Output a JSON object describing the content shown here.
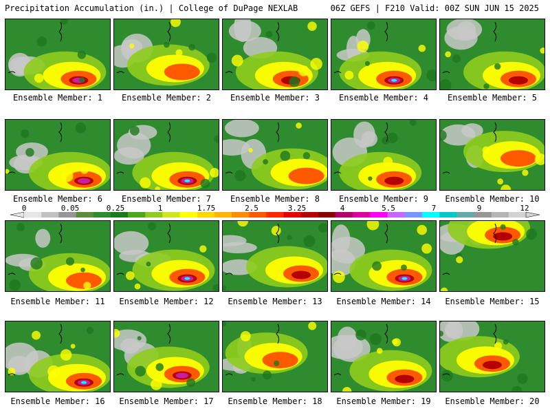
{
  "header": {
    "title_left": "Precipitation Accumulation (in.) | College of DuPage NEXLAB",
    "title_right": "06Z GEFS | F210 Valid: 00Z SUN JUN 15 2025"
  },
  "members": [
    {
      "label": "Ensemble Member: 1",
      "wet_center": [
        0.7,
        0.85
      ],
      "heavy_peak": 5.5
    },
    {
      "label": "Ensemble Member: 2",
      "wet_center": [
        0.65,
        0.75
      ],
      "heavy_peak": 3.25
    },
    {
      "label": "Ensemble Member: 3",
      "wet_center": [
        0.65,
        0.85
      ],
      "heavy_peak": 4
    },
    {
      "label": "Ensemble Member: 4",
      "wet_center": [
        0.6,
        0.85
      ],
      "heavy_peak": 7
    },
    {
      "label": "Ensemble Member: 5",
      "wet_center": [
        0.75,
        0.85
      ],
      "heavy_peak": 4
    },
    {
      "label": "Ensemble Member: 6",
      "wet_center": [
        0.75,
        0.85
      ],
      "heavy_peak": 5.5
    },
    {
      "label": "Ensemble Member: 7",
      "wet_center": [
        0.7,
        0.85
      ],
      "heavy_peak": 7
    },
    {
      "label": "Ensemble Member: 8",
      "wet_center": [
        0.8,
        0.8
      ],
      "heavy_peak": 3.25
    },
    {
      "label": "Ensemble Member: 9",
      "wet_center": [
        0.6,
        0.85
      ],
      "heavy_peak": 4
    },
    {
      "label": "Ensemble Member: 10",
      "wet_center": [
        0.75,
        0.55
      ],
      "heavy_peak": 2.5
    },
    {
      "label": "Ensemble Member: 11",
      "wet_center": [
        0.75,
        0.85
      ],
      "heavy_peak": 3.25
    },
    {
      "label": "Ensemble Member: 12",
      "wet_center": [
        0.7,
        0.8
      ],
      "heavy_peak": 7
    },
    {
      "label": "Ensemble Member: 13",
      "wet_center": [
        0.75,
        0.75
      ],
      "heavy_peak": 4
    },
    {
      "label": "Ensemble Member: 14",
      "wet_center": [
        0.7,
        0.8
      ],
      "heavy_peak": 7
    },
    {
      "label": "Ensemble Member: 15",
      "wet_center": [
        0.6,
        0.2
      ],
      "heavy_peak": 4
    },
    {
      "label": "Ensemble Member: 16",
      "wet_center": [
        0.75,
        0.85
      ],
      "heavy_peak": 7
    },
    {
      "label": "Ensemble Member: 17",
      "wet_center": [
        0.65,
        0.75
      ],
      "heavy_peak": 5.5
    },
    {
      "label": "Ensemble Member: 18",
      "wet_center": [
        0.55,
        0.55
      ],
      "heavy_peak": 3.25
    },
    {
      "label": "Ensemble Member: 19",
      "wet_center": [
        0.7,
        0.8
      ],
      "heavy_peak": 4
    },
    {
      "label": "Ensemble Member: 20",
      "wet_center": [
        0.5,
        0.6
      ],
      "heavy_peak": 4
    }
  ],
  "colorbar": {
    "labels": [
      "0",
      "0.05",
      "0.25",
      "1",
      "1.75",
      "2.5",
      "3.25",
      "4",
      "5.5",
      "7",
      "9",
      "12"
    ],
    "colors": [
      "#e6e6e6",
      "#c0c0c0",
      "#969696",
      "#5a8c3c",
      "#2e8b2e",
      "#1e781e",
      "#4fa61e",
      "#8fcc1e",
      "#d2e61e",
      "#ffff00",
      "#ffd700",
      "#ffb400",
      "#ff8c00",
      "#ff5a00",
      "#ff2800",
      "#e60000",
      "#b40000",
      "#8c0000",
      "#b4006e",
      "#dc00a0",
      "#ff00ff",
      "#c864ff",
      "#7896ff",
      "#00ffff",
      "#00c8c8",
      "#64aaaa",
      "#969696",
      "#b4b4b4",
      "#d2d2d2"
    ]
  },
  "legend_colors": {
    "dry": "#c8c8c8",
    "light": "#2e8b2e",
    "moderate": "#ffff00",
    "heavy": "#ff5a00",
    "extreme": "#c81ea0",
    "peak": "#00ffff"
  }
}
